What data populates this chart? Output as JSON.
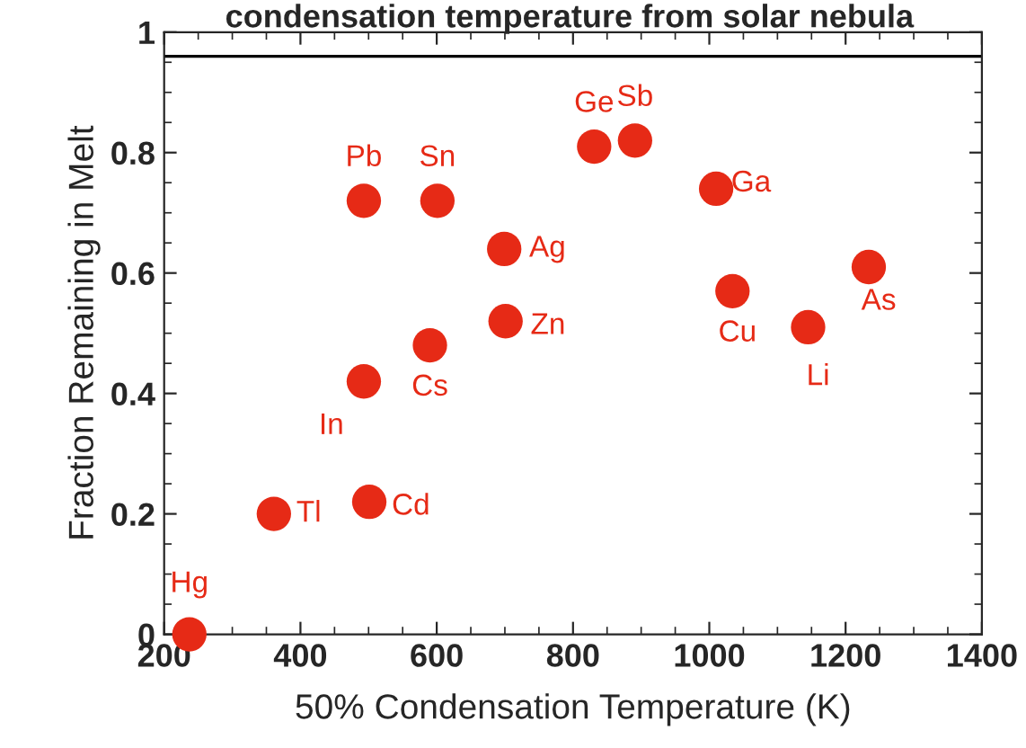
{
  "chart_data": {
    "type": "scatter",
    "title": "condensation temperature from solar nebula",
    "xlabel": "50% Condensation Temperature (K)",
    "ylabel": "Fraction Remaining in Melt",
    "x": [
      237,
      361,
      501,
      493,
      493,
      601,
      590,
      699,
      701,
      831,
      891,
      1010,
      1034,
      1145,
      1234
    ],
    "values": [
      0,
      0.2,
      0.22,
      0.42,
      0.72,
      0.72,
      0.48,
      0.64,
      0.52,
      0.81,
      0.82,
      0.74,
      0.57,
      0.51,
      0.61
    ],
    "color": "#e62a16",
    "marker": "circle",
    "annotations": [
      {
        "text": "Hg",
        "x": 237,
        "y": 0
      },
      {
        "text": "Tl",
        "x": 361,
        "y": 0.2
      },
      {
        "text": "Cd",
        "x": 501,
        "y": 0.22
      },
      {
        "text": "In",
        "x": 493,
        "y": 0.42
      },
      {
        "text": "Pb",
        "x": 493,
        "y": 0.72
      },
      {
        "text": "Sn",
        "x": 601,
        "y": 0.72
      },
      {
        "text": "Cs",
        "x": 590,
        "y": 0.48
      },
      {
        "text": "Ag",
        "x": 699,
        "y": 0.64
      },
      {
        "text": "Zn",
        "x": 701,
        "y": 0.52
      },
      {
        "text": "Ge",
        "x": 831,
        "y": 0.81
      },
      {
        "text": "Sb",
        "x": 891,
        "y": 0.82
      },
      {
        "text": "Ga",
        "x": 1010,
        "y": 0.74
      },
      {
        "text": "Cu",
        "x": 1034,
        "y": 0.57
      },
      {
        "text": "Li",
        "x": 1145,
        "y": 0.51
      },
      {
        "text": "As",
        "x": 1234,
        "y": 0.61
      }
    ],
    "ref_lines": [
      {
        "axis": "y",
        "value": 0.96,
        "color": "#000000"
      }
    ],
    "xlim": [
      200,
      1400
    ],
    "xticks": [
      200,
      400,
      600,
      800,
      1000,
      1200,
      1400
    ],
    "ylim": [
      0,
      1
    ],
    "yticks": [
      0,
      0.2,
      0.4,
      0.6,
      0.8,
      1
    ],
    "grid": false,
    "legend": false
  }
}
